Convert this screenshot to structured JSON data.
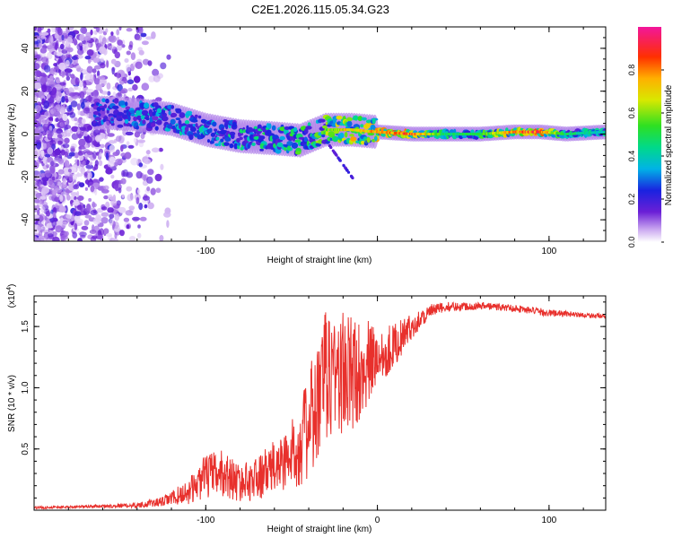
{
  "chart_data": [
    {
      "type": "heatmap",
      "title": "C2E1.2026.115.05.34.G23",
      "xlabel": "Height of straight line (km)",
      "ylabel": "Frequency (Hz)",
      "xlim": [
        -200,
        133
      ],
      "ylim": [
        -50,
        50
      ],
      "xticks": [
        -100,
        0,
        100
      ],
      "xtick_labels": [
        "-100",
        "",
        "100"
      ],
      "yticks": [
        -40,
        -20,
        0,
        20,
        40
      ],
      "ytick_labels": [
        "-40",
        "-20",
        "0",
        "20",
        "40"
      ],
      "colorbar": {
        "label": "Normalized spectral amplitude",
        "range": [
          0.0,
          1.0
        ],
        "ticks": [
          0.0,
          0.2,
          0.4,
          0.6,
          0.8
        ],
        "tick_labels": [
          "0.0",
          "0.2",
          "0.4",
          "0.6",
          "0.8"
        ]
      },
      "ridge": [
        {
          "x": -160,
          "f": 10,
          "amp": 0.3
        },
        {
          "x": -140,
          "f": 9,
          "amp": 0.35
        },
        {
          "x": -120,
          "f": 7,
          "amp": 0.38
        },
        {
          "x": -100,
          "f": 2,
          "amp": 0.42
        },
        {
          "x": -80,
          "f": -1,
          "amp": 0.45
        },
        {
          "x": -60,
          "f": -2,
          "amp": 0.48
        },
        {
          "x": -45,
          "f": -3,
          "amp": 0.55
        },
        {
          "x": -30,
          "f": 2,
          "amp": 0.6
        },
        {
          "x": -15,
          "f": 2,
          "amp": 0.7
        },
        {
          "x": 0,
          "f": 1,
          "amp": 0.75
        },
        {
          "x": 20,
          "f": 0,
          "amp": 0.85
        },
        {
          "x": 40,
          "f": 0,
          "amp": 0.45
        },
        {
          "x": 60,
          "f": 0,
          "amp": 0.5
        },
        {
          "x": 80,
          "f": 1,
          "amp": 0.8
        },
        {
          "x": 95,
          "f": 1,
          "amp": 0.85
        },
        {
          "x": 110,
          "f": 0,
          "amp": 0.45
        },
        {
          "x": 133,
          "f": 1,
          "amp": 0.4
        }
      ]
    },
    {
      "type": "line",
      "xlabel": "Height of straight line (km)",
      "ylabel": "SNR (10 * v/v)",
      "yscale_label": "(x10",
      "yscale_exp": "4",
      "yscale_close": ")",
      "xlim": [
        -200,
        133
      ],
      "ylim": [
        0,
        1.75
      ],
      "xticks": [
        -100,
        0,
        100
      ],
      "xtick_labels": [
        "-100",
        "0",
        "100"
      ],
      "yticks": [
        0.5,
        1.0,
        1.5
      ],
      "ytick_labels": [
        "0.5",
        "1.0",
        "1.5"
      ],
      "series": [
        {
          "name": "SNR",
          "color": "#e8302c",
          "x": [
            -200,
            -170,
            -140,
            -125,
            -110,
            -100,
            -90,
            -80,
            -70,
            -60,
            -50,
            -45,
            -40,
            -35,
            -30,
            -25,
            -20,
            -15,
            -10,
            -5,
            0,
            10,
            20,
            30,
            40,
            60,
            80,
            100,
            115,
            133
          ],
          "y": [
            0.02,
            0.03,
            0.04,
            0.07,
            0.15,
            0.28,
            0.3,
            0.22,
            0.26,
            0.35,
            0.45,
            0.55,
            0.68,
            0.85,
            1.1,
            1.15,
            1.1,
            1.1,
            1.15,
            1.2,
            1.25,
            1.35,
            1.5,
            1.62,
            1.66,
            1.67,
            1.65,
            1.61,
            1.6,
            1.58
          ],
          "noise": [
            0.01,
            0.01,
            0.02,
            0.04,
            0.1,
            0.18,
            0.2,
            0.15,
            0.18,
            0.22,
            0.28,
            0.35,
            0.45,
            0.55,
            0.55,
            0.55,
            0.55,
            0.5,
            0.4,
            0.35,
            0.25,
            0.18,
            0.1,
            0.06,
            0.04,
            0.03,
            0.03,
            0.03,
            0.02,
            0.02
          ]
        }
      ]
    }
  ],
  "colors": {
    "axis": "#000000",
    "line": "#e8302c"
  }
}
